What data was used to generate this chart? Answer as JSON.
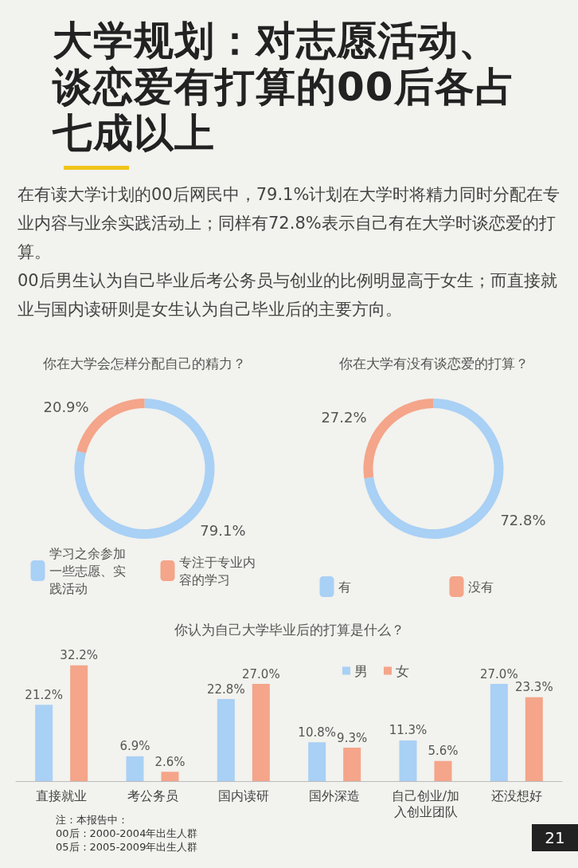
{
  "chart_data": [
    {
      "type": "other",
      "title": "大学规划：对志愿活动、谈恋爱有打算的00后各占七成以上",
      "subtitle": "在有读大学计划的00后网民中，79.1%计划在大学时将精力同时分配在专业内容与业余实践活动上；同样有72.8%表示自己有在大学时谈恋爱的打算。",
      "annotations": [
        "00后男生认为自己毕业后考公务员与创业的比例明显高于女生；而直接就业与国内读研则是女生认为自己毕业后的主要方向。"
      ]
    },
    {
      "type": "donut",
      "title": "你在大学会怎样分配自己的精力？",
      "categories": [
        "学习之余参加一些志愿、实践活动",
        "专注于专业内容的学习"
      ],
      "values": [
        79.1,
        20.9
      ],
      "colors": [
        "#a9d0f5",
        "#f4a58a"
      ],
      "value_labels": [
        "79.1%",
        "20.9%"
      ],
      "legend": "bottom"
    },
    {
      "type": "donut",
      "title": "你在大学有没有谈恋爱的打算？",
      "categories": [
        "有",
        "没有"
      ],
      "values": [
        72.8,
        27.2
      ],
      "colors": [
        "#a9d0f5",
        "#f4a58a"
      ],
      "value_labels": [
        "72.8%",
        "27.2%"
      ],
      "legend": "bottom"
    },
    {
      "type": "bar",
      "title": "你认为自己大学毕业后的打算是什么？",
      "categories": [
        "直接就业",
        "考公务员",
        "国内读研",
        "国外深造",
        "自己创业/加入创业团队",
        "还没想好"
      ],
      "series": [
        {
          "name": "男",
          "color": "#a9d0f5",
          "values": [
            21.2,
            6.9,
            22.8,
            10.8,
            11.3,
            27.0
          ],
          "value_labels": [
            "21.2%",
            "6.9%",
            "22.8%",
            "10.8%",
            "11.3%",
            "27.0%"
          ]
        },
        {
          "name": "女",
          "color": "#f4a58a",
          "values": [
            32.2,
            2.6,
            27.0,
            9.3,
            5.6,
            23.3
          ],
          "value_labels": [
            "32.2%",
            "2.6%",
            "27.0%",
            "9.3%",
            "5.6%",
            "23.3%"
          ]
        }
      ],
      "tick_labels": "x",
      "legend": "top right",
      "annotations": [
        "注：本报告中：",
        "00后：2000-2004年出生人群",
        "05后：2005-2009年出生人群",
        "21"
      ]
    }
  ]
}
